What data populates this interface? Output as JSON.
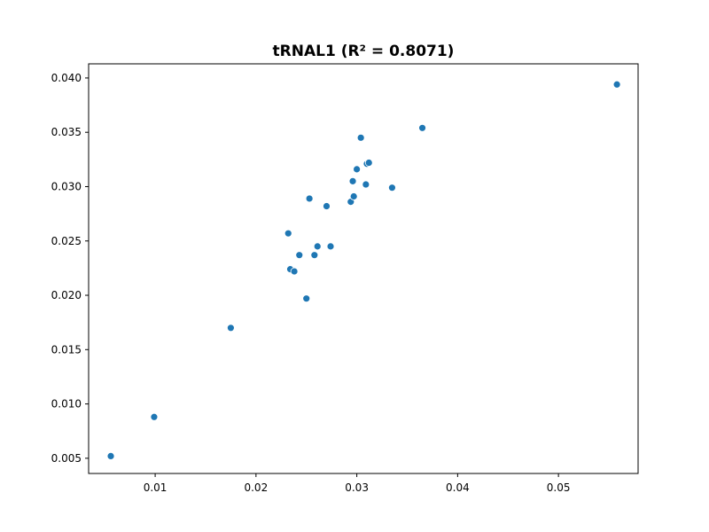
{
  "chart_data": {
    "type": "scatter",
    "title": "tRNAL1 (R² = 0.8071)",
    "xlabel": "",
    "ylabel": "",
    "xlim": [
      0.0034,
      0.0579
    ],
    "ylim": [
      0.0036,
      0.0413
    ],
    "xticks": [
      0.01,
      0.02,
      0.03,
      0.04,
      0.05
    ],
    "xtick_labels": [
      "0.01",
      "0.02",
      "0.03",
      "0.04",
      "0.05"
    ],
    "yticks": [
      0.005,
      0.01,
      0.015,
      0.02,
      0.025,
      0.03,
      0.035,
      0.04
    ],
    "ytick_labels": [
      "0.005",
      "0.010",
      "0.015",
      "0.020",
      "0.025",
      "0.030",
      "0.035",
      "0.040"
    ],
    "grid": false,
    "marker_color": "#1f77b4",
    "points": [
      {
        "x": 0.0056,
        "y": 0.0052
      },
      {
        "x": 0.0099,
        "y": 0.0088
      },
      {
        "x": 0.0175,
        "y": 0.017
      },
      {
        "x": 0.0232,
        "y": 0.0257
      },
      {
        "x": 0.0234,
        "y": 0.0224
      },
      {
        "x": 0.0238,
        "y": 0.0222
      },
      {
        "x": 0.0243,
        "y": 0.0237
      },
      {
        "x": 0.025,
        "y": 0.0197
      },
      {
        "x": 0.0253,
        "y": 0.0289
      },
      {
        "x": 0.0258,
        "y": 0.0237
      },
      {
        "x": 0.0261,
        "y": 0.0245
      },
      {
        "x": 0.027,
        "y": 0.0282
      },
      {
        "x": 0.0274,
        "y": 0.0245
      },
      {
        "x": 0.0294,
        "y": 0.0286
      },
      {
        "x": 0.0296,
        "y": 0.0305
      },
      {
        "x": 0.0297,
        "y": 0.0291
      },
      {
        "x": 0.03,
        "y": 0.0316
      },
      {
        "x": 0.0304,
        "y": 0.0345
      },
      {
        "x": 0.0309,
        "y": 0.0302
      },
      {
        "x": 0.031,
        "y": 0.0321
      },
      {
        "x": 0.0312,
        "y": 0.0322
      },
      {
        "x": 0.0335,
        "y": 0.0299
      },
      {
        "x": 0.0365,
        "y": 0.0354
      },
      {
        "x": 0.0558,
        "y": 0.0394
      }
    ]
  }
}
